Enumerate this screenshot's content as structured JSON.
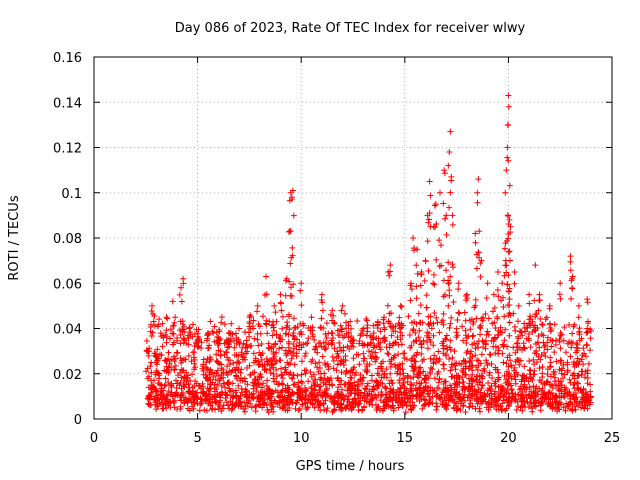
{
  "chart_data": {
    "type": "scatter",
    "title": "Day 086 of 2023, Rate Of TEC Index for receiver wlwy",
    "xlabel": "GPS time / hours",
    "ylabel": "ROTI / TECUs",
    "xlim": [
      0,
      25
    ],
    "ylim": [
      0,
      0.16
    ],
    "xticks": [
      "0",
      "5",
      "10",
      "15",
      "20",
      "25"
    ],
    "xtick_values": [
      0,
      5,
      10,
      15,
      20,
      25
    ],
    "yticks": [
      "0",
      "0.02",
      "0.04",
      "0.06",
      "0.08",
      "0.1",
      "0.12",
      "0.14",
      "0.16"
    ],
    "ytick_values": [
      0,
      0.02,
      0.04,
      0.06,
      0.08,
      0.1,
      0.12,
      0.14,
      0.16
    ],
    "grid": true,
    "marker": "+",
    "series": [
      {
        "name": "ROTI",
        "color": "#ff0000",
        "x_start": 2.5,
        "x_end": 24.0,
        "typical_range": [
          0.003,
          0.04
        ],
        "points": [
          [
            2.6,
            0.03
          ],
          [
            2.8,
            0.05
          ],
          [
            3.0,
            0.025
          ],
          [
            3.5,
            0.045
          ],
          [
            3.8,
            0.052
          ],
          [
            4.2,
            0.058
          ],
          [
            4.3,
            0.062
          ],
          [
            4.6,
            0.04
          ],
          [
            5.0,
            0.035
          ],
          [
            5.5,
            0.038
          ],
          [
            6.0,
            0.036
          ],
          [
            6.5,
            0.035
          ],
          [
            7.0,
            0.04
          ],
          [
            7.5,
            0.045
          ],
          [
            7.9,
            0.05
          ],
          [
            8.3,
            0.063
          ],
          [
            8.7,
            0.05
          ],
          [
            9.0,
            0.055
          ],
          [
            9.3,
            0.062
          ],
          [
            9.45,
            0.083
          ],
          [
            9.5,
            0.1
          ],
          [
            9.55,
            0.098
          ],
          [
            9.6,
            0.101
          ],
          [
            10.0,
            0.06
          ],
          [
            10.5,
            0.045
          ],
          [
            11.0,
            0.055
          ],
          [
            11.5,
            0.048
          ],
          [
            12.0,
            0.05
          ],
          [
            12.5,
            0.035
          ],
          [
            13.0,
            0.04
          ],
          [
            13.5,
            0.038
          ],
          [
            14.0,
            0.045
          ],
          [
            14.2,
            0.065
          ],
          [
            14.3,
            0.068
          ],
          [
            14.8,
            0.05
          ],
          [
            15.3,
            0.06
          ],
          [
            15.4,
            0.08
          ],
          [
            15.6,
            0.075
          ],
          [
            15.8,
            0.065
          ],
          [
            16.0,
            0.07
          ],
          [
            16.1,
            0.09
          ],
          [
            16.2,
            0.105
          ],
          [
            16.4,
            0.085
          ],
          [
            16.5,
            0.095
          ],
          [
            16.7,
            0.1
          ],
          [
            16.9,
            0.11
          ],
          [
            17.0,
            0.09
          ],
          [
            17.1,
            0.112
          ],
          [
            17.15,
            0.118
          ],
          [
            17.2,
            0.127
          ],
          [
            17.3,
            0.09
          ],
          [
            17.6,
            0.06
          ],
          [
            18.0,
            0.055
          ],
          [
            18.4,
            0.082
          ],
          [
            18.5,
            0.1
          ],
          [
            18.55,
            0.106
          ],
          [
            18.7,
            0.07
          ],
          [
            19.0,
            0.06
          ],
          [
            19.3,
            0.055
          ],
          [
            19.5,
            0.065
          ],
          [
            19.7,
            0.06
          ],
          [
            19.85,
            0.1
          ],
          [
            19.9,
            0.11
          ],
          [
            19.95,
            0.12
          ],
          [
            19.97,
            0.13
          ],
          [
            20.0,
            0.143
          ],
          [
            20.02,
            0.138
          ],
          [
            20.05,
            0.088
          ],
          [
            20.1,
            0.085
          ],
          [
            20.3,
            0.065
          ],
          [
            20.5,
            0.05
          ],
          [
            21.0,
            0.055
          ],
          [
            21.3,
            0.068
          ],
          [
            21.5,
            0.055
          ],
          [
            22.0,
            0.05
          ],
          [
            22.5,
            0.06
          ],
          [
            23.0,
            0.072
          ],
          [
            23.1,
            0.063
          ],
          [
            23.4,
            0.05
          ],
          [
            23.8,
            0.053
          ]
        ]
      }
    ]
  }
}
